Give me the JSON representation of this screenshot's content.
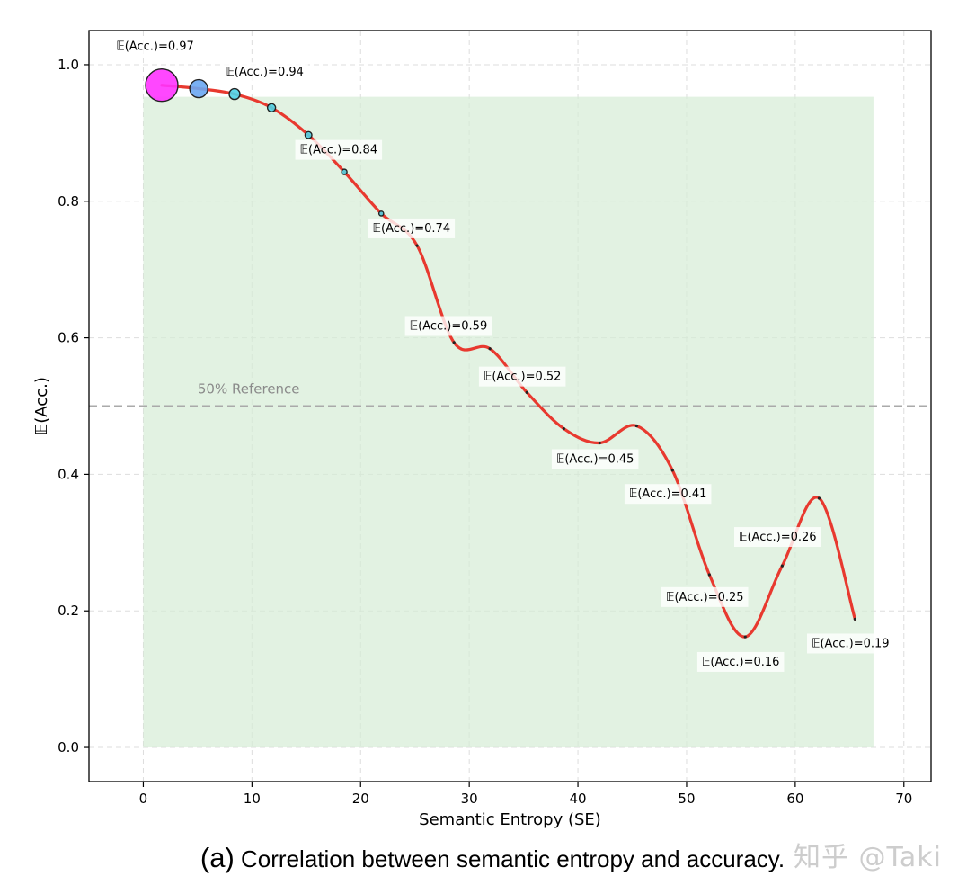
{
  "chart_data": {
    "type": "line",
    "title": "",
    "xlabel": "Semantic Entropy (SE)",
    "ylabel": "𝔼(Acc.)",
    "xlim": [
      -5,
      72.5
    ],
    "ylim": [
      -0.05,
      1.05
    ],
    "xticks": [
      0,
      10,
      20,
      30,
      40,
      50,
      60,
      70
    ],
    "yticks": [
      0.0,
      0.2,
      0.4,
      0.6,
      0.8,
      1.0
    ],
    "xtick_labels": [
      "0",
      "10",
      "20",
      "30",
      "40",
      "50",
      "60",
      "70"
    ],
    "ytick_labels": [
      "0.0",
      "0.2",
      "0.4",
      "0.6",
      "0.8",
      "1.0"
    ],
    "grid": true,
    "curve": {
      "x": [
        1.7,
        5.1,
        8.4,
        11.8,
        15.2,
        18.5,
        21.9,
        25.2,
        28.6,
        31.9,
        35.3,
        38.7,
        42.0,
        45.4,
        48.7,
        52.1,
        55.4,
        58.8,
        62.2,
        65.5
      ],
      "y": [
        0.97,
        0.965,
        0.957,
        0.937,
        0.897,
        0.843,
        0.782,
        0.735,
        0.593,
        0.584,
        0.52,
        0.467,
        0.446,
        0.471,
        0.406,
        0.253,
        0.162,
        0.266,
        0.365,
        0.188
      ],
      "color": "#e8392f"
    },
    "markers": [
      {
        "x": 1.7,
        "y": 0.97,
        "color": "#ff33ff"
      },
      {
        "x": 5.1,
        "y": 0.965,
        "color": "#6aa7f2"
      },
      {
        "x": 8.4,
        "y": 0.957,
        "color": "#4fd3e6"
      },
      {
        "x": 11.8,
        "y": 0.937,
        "color": "#4fd3e6"
      },
      {
        "x": 15.2,
        "y": 0.897,
        "color": "#4fd3e6"
      },
      {
        "x": 18.5,
        "y": 0.843,
        "color": "#4fd3e6"
      },
      {
        "x": 21.9,
        "y": 0.782,
        "color": "#4fd3e6"
      }
    ],
    "shaded_region": {
      "x": [
        0,
        67.2
      ],
      "y": [
        0,
        0.953
      ],
      "color": "#d6ecd6"
    },
    "reference_line": {
      "y": 0.5,
      "label": "50% Reference",
      "color": "#aaaaaa"
    },
    "annotations": [
      {
        "text": "𝔼(Acc.)=0.97",
        "x": -2.5,
        "y": 1.022
      },
      {
        "text": "𝔼(Acc.)=0.94",
        "x": 7.6,
        "y": 0.984
      },
      {
        "text": "𝔼(Acc.)=0.84",
        "x": 14.4,
        "y": 0.87
      },
      {
        "text": "𝔼(Acc.)=0.74",
        "x": 21.1,
        "y": 0.755
      },
      {
        "text": "𝔼(Acc.)=0.59",
        "x": 24.5,
        "y": 0.612
      },
      {
        "text": "𝔼(Acc.)=0.52",
        "x": 31.3,
        "y": 0.538
      },
      {
        "text": "𝔼(Acc.)=0.45",
        "x": 38.0,
        "y": 0.417
      },
      {
        "text": "𝔼(Acc.)=0.41",
        "x": 44.7,
        "y": 0.366
      },
      {
        "text": "𝔼(Acc.)=0.26",
        "x": 54.8,
        "y": 0.303
      },
      {
        "text": "𝔼(Acc.)=0.25",
        "x": 48.1,
        "y": 0.215
      },
      {
        "text": "𝔼(Acc.)=0.16",
        "x": 51.4,
        "y": 0.12
      },
      {
        "text": "𝔼(Acc.)=0.19",
        "x": 61.5,
        "y": 0.147
      }
    ]
  },
  "caption": {
    "label": "(a)",
    "text": "Correlation between semantic entropy and accuracy."
  },
  "watermark": "知乎 @Taki"
}
